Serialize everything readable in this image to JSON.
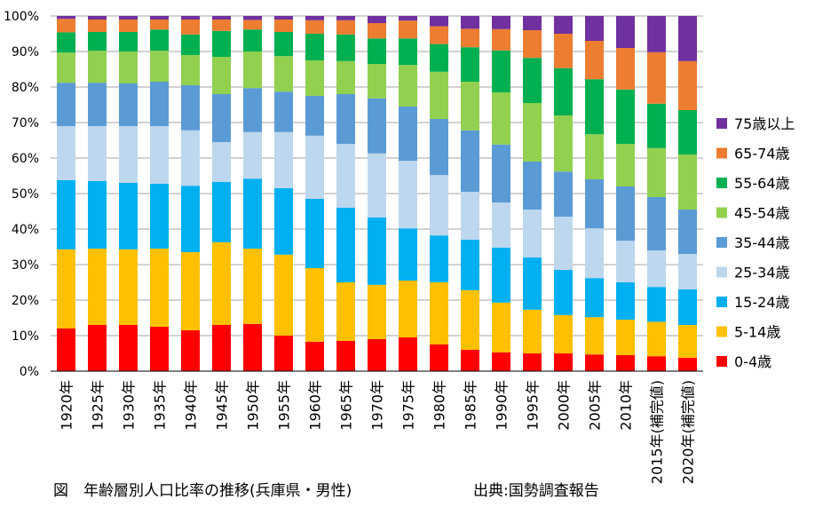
{
  "caption": "図　年齢層別人口比率の推移(兵庫県・男性)",
  "source": "出典:国勢調査報告",
  "chart_data": {
    "type": "bar",
    "stacked": true,
    "title": "",
    "xlabel": "",
    "ylabel": "",
    "ylim": [
      0,
      100
    ],
    "y_ticks": [
      "0%",
      "10%",
      "20%",
      "30%",
      "40%",
      "50%",
      "60%",
      "70%",
      "80%",
      "90%",
      "100%"
    ],
    "gridlines": true,
    "legend_position": "right",
    "categories": [
      "1920年",
      "1925年",
      "1930年",
      "1935年",
      "1940年",
      "1945年",
      "1950年",
      "1955年",
      "1960年",
      "1965年",
      "1970年",
      "1975年",
      "1980年",
      "1985年",
      "1990年",
      "1995年",
      "2000年",
      "2005年",
      "2010年",
      "2015年(補完値)",
      "2020年(補完値)"
    ],
    "series": [
      {
        "name": "0-4歳",
        "color": "#ff0000",
        "values": [
          12.0,
          13.0,
          13.0,
          12.5,
          11.5,
          13.0,
          13.3,
          10.0,
          8.3,
          8.5,
          9.0,
          9.5,
          7.5,
          6.0,
          5.3,
          5.0,
          5.0,
          4.7,
          4.5,
          4.2,
          3.8
        ]
      },
      {
        "name": "5-14歳",
        "color": "#ffc000",
        "values": [
          22.3,
          21.5,
          21.3,
          22.0,
          22.0,
          23.3,
          21.2,
          22.8,
          20.7,
          16.5,
          15.3,
          16.0,
          17.5,
          16.8,
          14.0,
          12.3,
          10.8,
          10.5,
          10.0,
          9.7,
          9.2
        ]
      },
      {
        "name": "15-24歳",
        "color": "#00b0f0",
        "values": [
          19.5,
          19.0,
          18.7,
          18.3,
          18.7,
          17.0,
          19.7,
          18.7,
          19.5,
          21.0,
          19.0,
          14.7,
          13.2,
          14.2,
          15.5,
          14.7,
          12.7,
          11.0,
          10.5,
          9.8,
          10.0
        ]
      },
      {
        "name": "25-34歳",
        "color": "#bdd7ee",
        "values": [
          15.2,
          15.5,
          16.0,
          16.2,
          15.6,
          11.2,
          13.1,
          15.8,
          17.8,
          18.0,
          18.0,
          19.0,
          17.0,
          13.5,
          12.7,
          13.5,
          15.0,
          14.0,
          11.7,
          10.3,
          10.0
        ]
      },
      {
        "name": "35-44歳",
        "color": "#5b9bd5",
        "values": [
          12.2,
          12.2,
          12.0,
          12.5,
          12.7,
          13.5,
          12.4,
          11.4,
          11.2,
          14.0,
          15.5,
          15.3,
          15.8,
          17.3,
          16.3,
          13.5,
          12.7,
          13.8,
          15.3,
          15.0,
          12.5
        ]
      },
      {
        "name": "45-54歳",
        "color": "#92d050",
        "values": [
          8.5,
          9.0,
          9.0,
          8.7,
          8.5,
          10.5,
          10.3,
          10.0,
          10.0,
          9.3,
          9.7,
          11.7,
          13.3,
          13.7,
          14.7,
          16.5,
          15.8,
          12.7,
          12.0,
          13.8,
          15.5
        ]
      },
      {
        "name": "55-64歳",
        "color": "#00b050",
        "values": [
          5.7,
          5.3,
          5.5,
          6.0,
          5.8,
          7.3,
          6.2,
          6.8,
          7.5,
          7.5,
          7.2,
          7.5,
          7.8,
          9.7,
          11.8,
          12.7,
          13.3,
          15.5,
          15.3,
          12.5,
          12.5
        ]
      },
      {
        "name": "65-74歳",
        "color": "#ed7d31",
        "values": [
          3.8,
          3.5,
          3.5,
          2.8,
          4.2,
          3.2,
          2.7,
          3.5,
          3.8,
          4.0,
          4.3,
          5.0,
          5.0,
          5.2,
          6.0,
          7.8,
          9.7,
          10.8,
          11.7,
          14.5,
          13.8
        ]
      },
      {
        "name": "75歳以上",
        "color": "#7030a0",
        "values": [
          0.8,
          1.0,
          1.0,
          1.0,
          1.0,
          1.0,
          1.1,
          1.0,
          1.2,
          1.2,
          2.0,
          1.3,
          2.9,
          3.6,
          3.7,
          4.0,
          5.0,
          7.0,
          9.0,
          10.2,
          12.7
        ]
      }
    ]
  }
}
